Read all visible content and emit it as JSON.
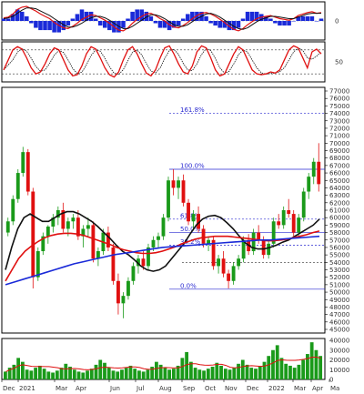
{
  "chart_data": [
    {
      "type": "line",
      "panel": "macd",
      "yticks": [
        "0"
      ],
      "series": [
        {
          "role": "macd",
          "color": "#e01010"
        },
        {
          "role": "signal",
          "color": "#111111"
        },
        {
          "role": "histogram",
          "color": "#1a2ad8"
        }
      ],
      "x": [
        0,
        1,
        2,
        3,
        4,
        5,
        6,
        7,
        8,
        9,
        10,
        11,
        12,
        13,
        14,
        15,
        16,
        17,
        18,
        19,
        20,
        21,
        22,
        23,
        24,
        25,
        26,
        27,
        28,
        29,
        30,
        31,
        32,
        33,
        34,
        35,
        36,
        37,
        38,
        39,
        40,
        41,
        42,
        43,
        44,
        45,
        46,
        47,
        48,
        49,
        50,
        51,
        52,
        53,
        54,
        55,
        56,
        57,
        58,
        59,
        60,
        61,
        62,
        63,
        64,
        65,
        66,
        67,
        68,
        69
      ],
      "macd": [
        400,
        500,
        900,
        1500,
        1800,
        1900,
        1600,
        1300,
        900,
        600,
        300,
        -200,
        -600,
        -900,
        -1000,
        -700,
        -300,
        200,
        500,
        800,
        700,
        400,
        100,
        -300,
        -800,
        -1200,
        -1300,
        -900,
        -300,
        200,
        600,
        900,
        1000,
        700,
        300,
        0,
        -500,
        -800,
        -900,
        -600,
        -200,
        300,
        700,
        1000,
        1100,
        900,
        600,
        200,
        -200,
        -700,
        -1100,
        -1300,
        -1000,
        -500,
        -100,
        300,
        500,
        600,
        700,
        500,
        300,
        200,
        100,
        300,
        700,
        900,
        1100,
        1200,
        1000,
        1100
      ],
      "signal": [
        300,
        400,
        600,
        1000,
        1400,
        1700,
        1700,
        1600,
        1300,
        1000,
        700,
        300,
        -100,
        -500,
        -800,
        -800,
        -600,
        -300,
        100,
        400,
        600,
        600,
        400,
        100,
        -300,
        -700,
        -1000,
        -1000,
        -700,
        -300,
        100,
        500,
        800,
        800,
        600,
        300,
        -100,
        -500,
        -700,
        -700,
        -500,
        -100,
        300,
        600,
        900,
        1000,
        800,
        500,
        100,
        -300,
        -700,
        -1000,
        -1100,
        -900,
        -500,
        -100,
        200,
        400,
        600,
        600,
        500,
        400,
        300,
        300,
        500,
        700,
        900,
        1000,
        1000,
        1000
      ],
      "ylim": [
        -2500,
        2500
      ]
    },
    {
      "type": "line",
      "panel": "stochastic",
      "yticks": [
        "50"
      ],
      "series": [
        {
          "role": "k",
          "color": "#e01010"
        },
        {
          "role": "d",
          "color": "#111111"
        }
      ],
      "x": [
        0,
        1,
        2,
        3,
        4,
        5,
        6,
        7,
        8,
        9,
        10,
        11,
        12,
        13,
        14,
        15,
        16,
        17,
        18,
        19,
        20,
        21,
        22,
        23,
        24,
        25,
        26,
        27,
        28,
        29,
        30,
        31,
        32,
        33,
        34,
        35,
        36,
        37,
        38,
        39,
        40,
        41,
        42,
        43,
        44,
        45,
        46,
        47,
        48,
        49,
        50,
        51,
        52,
        53,
        54,
        55,
        56,
        57,
        58,
        59,
        60,
        61,
        62,
        63,
        64,
        65,
        66,
        67,
        68,
        69
      ],
      "k": [
        30,
        55,
        80,
        88,
        82,
        60,
        35,
        20,
        25,
        45,
        70,
        85,
        80,
        55,
        30,
        15,
        18,
        40,
        70,
        88,
        82,
        60,
        35,
        18,
        12,
        25,
        55,
        80,
        88,
        70,
        45,
        22,
        15,
        30,
        60,
        85,
        90,
        70,
        45,
        25,
        20,
        40,
        75,
        90,
        85,
        60,
        30,
        15,
        20,
        45,
        70,
        88,
        80,
        55,
        30,
        20,
        18,
        20,
        25,
        22,
        30,
        55,
        80,
        90,
        85,
        60,
        35,
        75,
        82,
        70
      ],
      "reference_lines": [
        80,
        20
      ],
      "ylim": [
        0,
        100
      ]
    },
    {
      "type": "line",
      "panel": "price",
      "y_tick_labels": [
        "77000",
        "76000",
        "75000",
        "74000",
        "73000",
        "72000",
        "71000",
        "70000",
        "69000",
        "68000",
        "67000",
        "66000",
        "65000",
        "64000",
        "63000",
        "62000",
        "61000",
        "60000",
        "59000",
        "58000",
        "57000",
        "56000",
        "55000",
        "54000",
        "53000",
        "52000",
        "51000",
        "50000",
        "49000",
        "48000",
        "47000",
        "46000",
        "45000"
      ],
      "ylim": [
        45000,
        77000
      ],
      "fibonacci": [
        {
          "label": "161.8%",
          "value": 74000
        },
        {
          "label": "100.0%",
          "value": 66500
        },
        {
          "label": "61.8%",
          "value": 59800
        },
        {
          "label": "50.0%",
          "value": 58000
        },
        {
          "label": "38.2%",
          "value": 56300
        },
        {
          "label": "0.0%",
          "value": 50400
        }
      ],
      "support_line": 54000,
      "candles": [
        [
          58000,
          60000,
          57500,
          59500
        ],
        [
          59500,
          63000,
          59000,
          62500
        ],
        [
          62500,
          66500,
          62000,
          66000
        ],
        [
          66000,
          69500,
          65500,
          68800
        ],
        [
          68800,
          69200,
          63000,
          63500
        ],
        [
          63500,
          64000,
          50500,
          52000
        ],
        [
          52000,
          56000,
          51500,
          55500
        ],
        [
          55500,
          58000,
          55000,
          57500
        ],
        [
          57500,
          59000,
          56500,
          58800
        ],
        [
          58800,
          60500,
          58000,
          60000
        ],
        [
          60000,
          61500,
          59000,
          61000
        ],
        [
          61000,
          62000,
          58000,
          58500
        ],
        [
          58500,
          60000,
          57500,
          59500
        ],
        [
          59500,
          60500,
          58500,
          60000
        ],
        [
          60000,
          61000,
          57000,
          57500
        ],
        [
          57500,
          59000,
          56000,
          58500
        ],
        [
          58500,
          60000,
          57500,
          59000
        ],
        [
          59000,
          59500,
          54000,
          54500
        ],
        [
          54500,
          56000,
          53500,
          55500
        ],
        [
          55500,
          58500,
          55000,
          58000
        ],
        [
          58000,
          58800,
          55500,
          56000
        ],
        [
          56000,
          56500,
          51000,
          51500
        ],
        [
          51500,
          52500,
          47000,
          48500
        ],
        [
          48500,
          50000,
          46500,
          49500
        ],
        [
          49500,
          52000,
          49000,
          51500
        ],
        [
          51500,
          54000,
          51000,
          53500
        ],
        [
          53500,
          55000,
          52500,
          54500
        ],
        [
          54500,
          55500,
          53000,
          53500
        ],
        [
          53500,
          56500,
          53000,
          56000
        ],
        [
          56000,
          57500,
          55500,
          57000
        ],
        [
          57000,
          58000,
          56000,
          57500
        ],
        [
          57500,
          60500,
          57000,
          60000
        ],
        [
          60000,
          65500,
          59500,
          65000
        ],
        [
          65000,
          66500,
          63000,
          64000
        ],
        [
          64000,
          65500,
          62500,
          65000
        ],
        [
          65000,
          65800,
          61500,
          62000
        ],
        [
          62000,
          62500,
          59000,
          59500
        ],
        [
          59500,
          61000,
          58500,
          60500
        ],
        [
          60500,
          61500,
          58000,
          58500
        ],
        [
          58500,
          59000,
          56000,
          56500
        ],
        [
          56500,
          57500,
          55500,
          57000
        ],
        [
          57000,
          57500,
          53000,
          53500
        ],
        [
          53500,
          55000,
          52500,
          54500
        ],
        [
          54500,
          55500,
          52000,
          52500
        ],
        [
          52500,
          53000,
          50500,
          51500
        ],
        [
          51500,
          54000,
          51000,
          53500
        ],
        [
          53500,
          55000,
          53000,
          54500
        ],
        [
          54500,
          57500,
          54000,
          57000
        ],
        [
          57000,
          57800,
          55000,
          55500
        ],
        [
          55500,
          58500,
          55000,
          58000
        ],
        [
          58000,
          59000,
          56500,
          57000
        ],
        [
          57000,
          57500,
          54500,
          55000
        ],
        [
          55000,
          57000,
          54500,
          56500
        ],
        [
          56500,
          60000,
          56000,
          59500
        ],
        [
          59500,
          60500,
          58500,
          59000
        ],
        [
          59000,
          61500,
          58500,
          61000
        ],
        [
          61000,
          62500,
          60000,
          60500
        ],
        [
          60500,
          61000,
          57500,
          58000
        ],
        [
          58000,
          60500,
          57500,
          60000
        ],
        [
          60000,
          64000,
          59500,
          63500
        ],
        [
          63500,
          66000,
          62500,
          65500
        ],
        [
          65500,
          68000,
          64500,
          67500
        ],
        [
          67500,
          70000,
          63500,
          64500
        ]
      ],
      "series": [
        {
          "role": "ma-short",
          "color": "#111111",
          "values": [
            53000,
            56000,
            58500,
            60000,
            60500,
            60000,
            59500,
            59500,
            60000,
            60500,
            60800,
            60800,
            60500,
            60000,
            59500,
            58800,
            58000,
            57200,
            56300,
            55500,
            55000,
            54300,
            53500,
            53000,
            52800,
            53000,
            53500,
            54500,
            55500,
            56500,
            57800,
            59000,
            59800,
            60200,
            60300,
            60000,
            59300,
            58500,
            57500,
            56600,
            56000,
            55800,
            55800,
            56000,
            56300,
            56700,
            57000,
            57500,
            58000,
            58500,
            59000,
            59800
          ]
        },
        {
          "role": "ma-medium",
          "color": "#e01010",
          "values": [
            51500,
            53000,
            54500,
            55500,
            56200,
            56800,
            57300,
            57600,
            57800,
            57900,
            57900,
            57800,
            57600,
            57300,
            57000,
            56700,
            56400,
            56000,
            55700,
            55500,
            55300,
            55200,
            55200,
            55300,
            55500,
            55800,
            56100,
            56500,
            56800,
            57100,
            57300,
            57400,
            57500,
            57500,
            57500,
            57400,
            57300,
            57200,
            57100,
            57000,
            56900,
            56900,
            57000,
            57100,
            57300,
            57500,
            57700,
            58000,
            58200
          ]
        },
        {
          "role": "ma-long",
          "color": "#1a2ad8",
          "values": [
            51000,
            51400,
            51800,
            52200,
            52600,
            53000,
            53400,
            53800,
            54100,
            54400,
            54700,
            55000,
            55200,
            55400,
            55600,
            55800,
            56000,
            56100,
            56200,
            56300,
            56400,
            56500,
            56600,
            56700,
            56800,
            56900,
            57000,
            57000,
            57100,
            57200,
            57300,
            57400,
            57500
          ]
        }
      ]
    },
    {
      "type": "bar",
      "panel": "volume",
      "y_tick_labels": [
        "40000",
        "30000",
        "20000",
        "10000",
        "0"
      ],
      "ylim": [
        0,
        40000
      ],
      "x_tick_labels": [
        "Dec",
        "2021",
        "Mar",
        "Apr",
        "Jun",
        "Jul",
        "Aug",
        "Sep",
        "Oct",
        "Nov",
        "Dec",
        "2022",
        "Mar",
        "Apr",
        "Ma"
      ],
      "values": [
        8000,
        12000,
        15000,
        22000,
        18000,
        10000,
        9000,
        12000,
        14000,
        11000,
        8000,
        7000,
        9000,
        12000,
        16000,
        13000,
        10000,
        8000,
        7000,
        9000,
        11000,
        15000,
        20000,
        17000,
        12000,
        9000,
        8000,
        10000,
        12000,
        14000,
        11000,
        9000,
        8000,
        10000,
        13000,
        18000,
        15000,
        12000,
        10000,
        11000,
        14000,
        22000,
        28000,
        18000,
        12000,
        10000,
        9000,
        11000,
        13000,
        17000,
        14000,
        11000,
        10000,
        12000,
        16000,
        20000,
        15000,
        12000,
        11000,
        13000,
        18000,
        24000,
        30000,
        35000,
        22000,
        16000,
        14000,
        12000,
        15000,
        20000,
        26000,
        38000,
        30000,
        24000
      ],
      "ma_color": "#e01010",
      "bar_color": "#1a9a1a"
    }
  ]
}
